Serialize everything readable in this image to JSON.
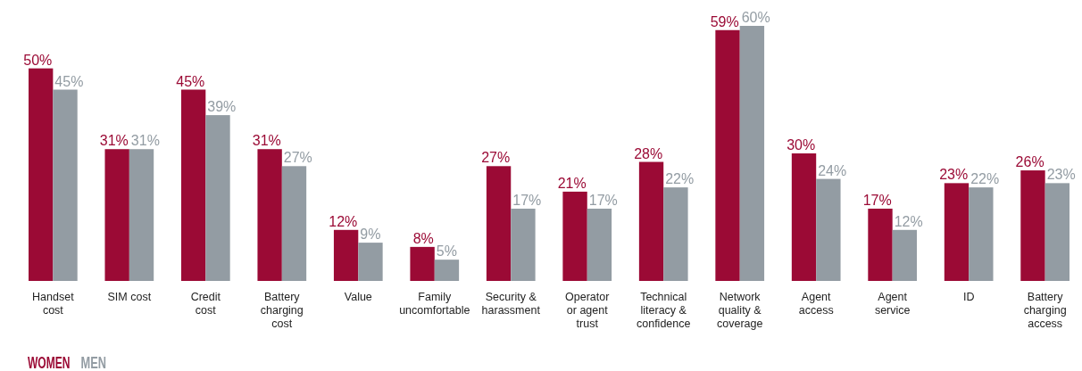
{
  "chart_data": {
    "type": "bar",
    "categories": [
      "Handset cost",
      "SIM cost",
      "Credit cost",
      "Battery charging cost",
      "Value",
      "Family uncomfortable",
      "Security & harassment",
      "Operator or agent trust",
      "Technical literacy & confidence",
      "Network quality & coverage",
      "Agent access",
      "Agent service",
      "ID",
      "Battery charging access"
    ],
    "series": [
      {
        "name": "WOMEN",
        "color": "#9b0a35",
        "values": [
          50,
          31,
          45,
          31,
          12,
          8,
          27,
          21,
          28,
          59,
          30,
          17,
          23,
          26
        ],
        "value_labels": [
          "50%",
          "31%",
          "45%",
          "31%",
          "12%",
          "8%",
          "27%",
          "21%",
          "28%",
          "59%",
          "30%",
          "17%",
          "23%",
          "26%"
        ]
      },
      {
        "name": "MEN",
        "color": "#939ca3",
        "values": [
          45,
          31,
          39,
          27,
          9,
          5,
          17,
          17,
          22,
          60,
          24,
          12,
          22,
          23
        ],
        "value_labels": [
          "45%",
          "31%",
          "39%",
          "27%",
          "9%",
          "5%",
          "17%",
          "17%",
          "22%",
          "60%",
          "24%",
          "12%",
          "22%",
          "23%"
        ]
      }
    ],
    "ylim": [
      0,
      60
    ],
    "tick_labels": "x",
    "legend": "bottom left"
  }
}
